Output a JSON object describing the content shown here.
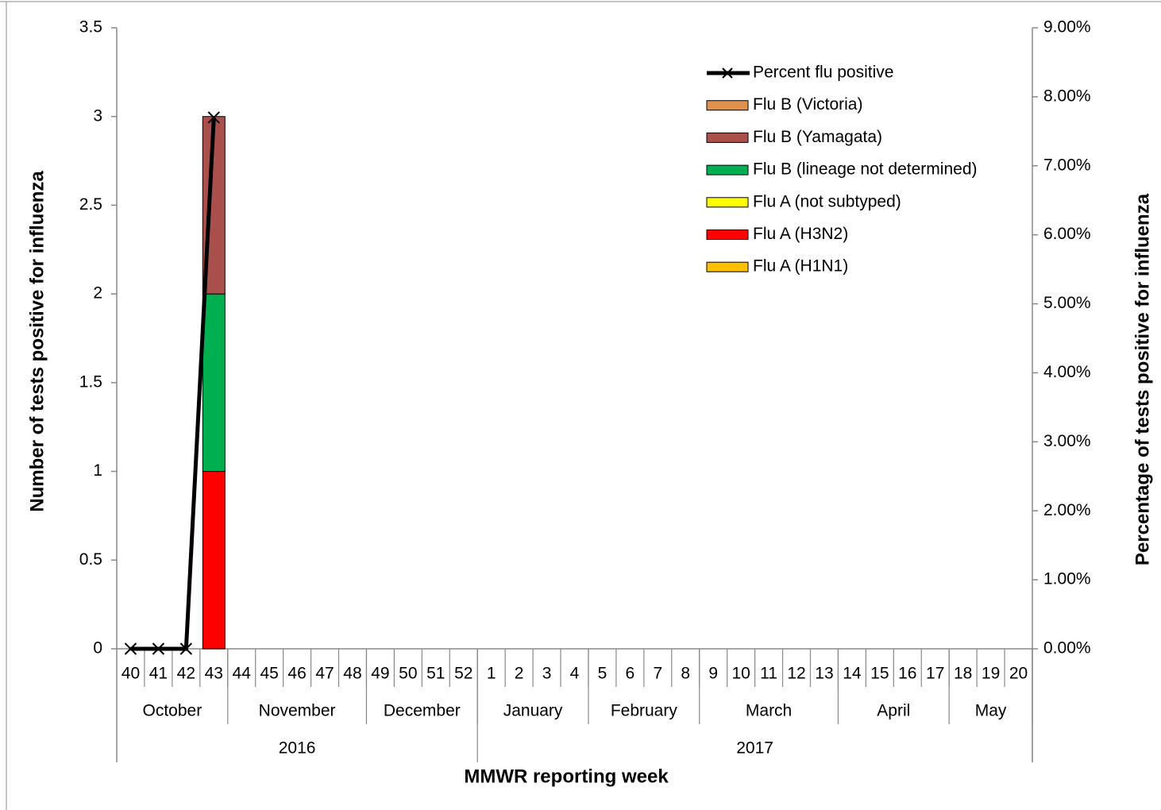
{
  "chart_data": {
    "type": "bar",
    "stacked": true,
    "x_label": "MMWR reporting week",
    "y_label": "Number of tests positive for influenza",
    "y2_label": "Percentage  of  tests  positive for influenza",
    "categories": [
      "40",
      "41",
      "42",
      "43",
      "44",
      "45",
      "46",
      "47",
      "48",
      "49",
      "50",
      "51",
      "52",
      "1",
      "2",
      "3",
      "4",
      "5",
      "6",
      "7",
      "8",
      "9",
      "10",
      "11",
      "12",
      "13",
      "14",
      "15",
      "16",
      "17",
      "18",
      "19",
      "20"
    ],
    "month_groups": [
      {
        "label": "October",
        "count": 4
      },
      {
        "label": "November",
        "count": 5
      },
      {
        "label": "December",
        "count": 4
      },
      {
        "label": "January",
        "count": 4
      },
      {
        "label": "February",
        "count": 4
      },
      {
        "label": "March",
        "count": 5
      },
      {
        "label": "April",
        "count": 4
      },
      {
        "label": "May",
        "count": 3
      }
    ],
    "year_groups": [
      {
        "label": "2016",
        "count": 13
      },
      {
        "label": "2017",
        "count": 20
      }
    ],
    "series": [
      {
        "name": "Flu A (H1N1)",
        "color": "#FFC000",
        "values": [
          0,
          0,
          0,
          0,
          null,
          null,
          null,
          null,
          null,
          null,
          null,
          null,
          null,
          null,
          null,
          null,
          null,
          null,
          null,
          null,
          null,
          null,
          null,
          null,
          null,
          null,
          null,
          null,
          null,
          null,
          null,
          null,
          null
        ]
      },
      {
        "name": "Flu A (H3N2)",
        "color": "#FF0000",
        "values": [
          0,
          0,
          0,
          1,
          null,
          null,
          null,
          null,
          null,
          null,
          null,
          null,
          null,
          null,
          null,
          null,
          null,
          null,
          null,
          null,
          null,
          null,
          null,
          null,
          null,
          null,
          null,
          null,
          null,
          null,
          null,
          null,
          null
        ]
      },
      {
        "name": "Flu A (not subtyped)",
        "color": "#FFFF00",
        "values": [
          0,
          0,
          0,
          0,
          null,
          null,
          null,
          null,
          null,
          null,
          null,
          null,
          null,
          null,
          null,
          null,
          null,
          null,
          null,
          null,
          null,
          null,
          null,
          null,
          null,
          null,
          null,
          null,
          null,
          null,
          null,
          null,
          null
        ]
      },
      {
        "name": "Flu B (lineage not determined)",
        "color": "#00B050",
        "values": [
          0,
          0,
          0,
          1,
          null,
          null,
          null,
          null,
          null,
          null,
          null,
          null,
          null,
          null,
          null,
          null,
          null,
          null,
          null,
          null,
          null,
          null,
          null,
          null,
          null,
          null,
          null,
          null,
          null,
          null,
          null,
          null,
          null
        ]
      },
      {
        "name": "Flu B (Yamagata)",
        "color": "#A9504D",
        "values": [
          0,
          0,
          0,
          1,
          null,
          null,
          null,
          null,
          null,
          null,
          null,
          null,
          null,
          null,
          null,
          null,
          null,
          null,
          null,
          null,
          null,
          null,
          null,
          null,
          null,
          null,
          null,
          null,
          null,
          null,
          null,
          null,
          null
        ]
      },
      {
        "name": "Flu B (Victoria)",
        "color": "#E0914B",
        "values": [
          0,
          0,
          0,
          0,
          null,
          null,
          null,
          null,
          null,
          null,
          null,
          null,
          null,
          null,
          null,
          null,
          null,
          null,
          null,
          null,
          null,
          null,
          null,
          null,
          null,
          null,
          null,
          null,
          null,
          null,
          null,
          null,
          null
        ]
      },
      {
        "name": "Percent flu positive",
        "type": "line",
        "axis": "y2",
        "color": "#000000",
        "values": [
          0,
          0,
          0,
          7.7,
          null,
          null,
          null,
          null,
          null,
          null,
          null,
          null,
          null,
          null,
          null,
          null,
          null,
          null,
          null,
          null,
          null,
          null,
          null,
          null,
          null,
          null,
          null,
          null,
          null,
          null,
          null,
          null,
          null
        ]
      }
    ],
    "ylim": [
      0,
      3.5
    ],
    "yticks": [
      0,
      0.5,
      1,
      1.5,
      2,
      2.5,
      3,
      3.5
    ],
    "y2lim": [
      0,
      9
    ],
    "y2ticks": [
      {
        "value": 0,
        "label": "0.00%"
      },
      {
        "value": 1,
        "label": "1.00%"
      },
      {
        "value": 2,
        "label": "2.00%"
      },
      {
        "value": 3,
        "label": "3.00%"
      },
      {
        "value": 4,
        "label": "4.00%"
      },
      {
        "value": 5,
        "label": "5.00%"
      },
      {
        "value": 6,
        "label": "6.00%"
      },
      {
        "value": 7,
        "label": "7.00%"
      },
      {
        "value": 8,
        "label": "8.00%"
      },
      {
        "value": 9,
        "label": "9.00%"
      }
    ],
    "legend": "upper right",
    "grid": false
  }
}
